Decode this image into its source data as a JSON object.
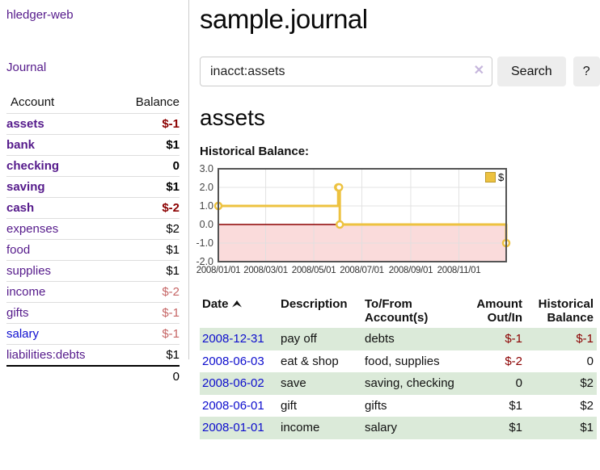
{
  "brand": "hledger-web",
  "sidebar": {
    "nav_journal": "Journal",
    "accounts_table": {
      "headers": {
        "account": "Account",
        "balance": "Balance"
      },
      "rows": [
        {
          "name": "assets",
          "balance": "$-1"
        },
        {
          "name": "bank",
          "balance": "$1"
        },
        {
          "name": "checking",
          "balance": "0"
        },
        {
          "name": "saving",
          "balance": "$1"
        },
        {
          "name": "cash",
          "balance": "$-2"
        },
        {
          "name": "expenses",
          "balance": "$2"
        },
        {
          "name": "food",
          "balance": "$1"
        },
        {
          "name": "supplies",
          "balance": "$1"
        },
        {
          "name": "income",
          "balance": "$-2"
        },
        {
          "name": "gifts",
          "balance": "$-1"
        },
        {
          "name": "salary",
          "balance": "$-1"
        },
        {
          "name": "liabilities:debts",
          "balance": "$1"
        }
      ],
      "total": "0"
    }
  },
  "header": {
    "title": "sample.journal"
  },
  "search": {
    "value": "inacct:assets",
    "clear_icon": "✕",
    "search_button": "Search",
    "help_button": "?"
  },
  "account_page": {
    "title": "assets",
    "chart_heading": "Historical Balance:"
  },
  "chart_data": {
    "type": "line",
    "title": "Historical Balance:",
    "series": [
      {
        "name": "$",
        "color": "#edc240",
        "step": true,
        "points": [
          [
            "2008-01-01",
            1
          ],
          [
            "2008-06-01",
            2
          ],
          [
            "2008-06-02",
            2
          ],
          [
            "2008-06-03",
            0
          ],
          [
            "2008-12-31",
            -1
          ]
        ]
      }
    ],
    "x": {
      "range": [
        "2008-01-01",
        "2008-12-31"
      ],
      "ticks": [
        "2008/01/01",
        "2008/03/01",
        "2008/05/01",
        "2008/07/01",
        "2008/09/01",
        "2008/11/01"
      ]
    },
    "y": {
      "lim": [
        -2,
        3
      ],
      "ticks": [
        "3.0",
        "2.0",
        "1.0",
        "0.0",
        "-1.0",
        "-2.0"
      ]
    },
    "legend": {
      "position": "top-right",
      "label": "$"
    },
    "grid": true,
    "zero_line_color": "#8b0000",
    "negative_region_color": "#f6bebe",
    "border_color": "#545454",
    "grid_color": "#e0e0e0"
  },
  "register": {
    "columns": [
      "Date",
      "Description",
      "To/From Account(s)",
      "Amount Out/In",
      "Historical Balance"
    ],
    "rows": [
      {
        "date": "2008-12-31",
        "description": "pay off",
        "accounts": "debts",
        "amount": "$-1",
        "balance": "$-1"
      },
      {
        "date": "2008-06-03",
        "description": "eat & shop",
        "accounts": "food, supplies",
        "amount": "$-2",
        "balance": "0"
      },
      {
        "date": "2008-06-02",
        "description": "save",
        "accounts": "saving, checking",
        "amount": "0",
        "balance": "$2"
      },
      {
        "date": "2008-06-01",
        "description": "gift",
        "accounts": "gifts",
        "amount": "$1",
        "balance": "$2"
      },
      {
        "date": "2008-01-01",
        "description": "income",
        "accounts": "salary",
        "amount": "$1",
        "balance": "$1"
      }
    ]
  }
}
